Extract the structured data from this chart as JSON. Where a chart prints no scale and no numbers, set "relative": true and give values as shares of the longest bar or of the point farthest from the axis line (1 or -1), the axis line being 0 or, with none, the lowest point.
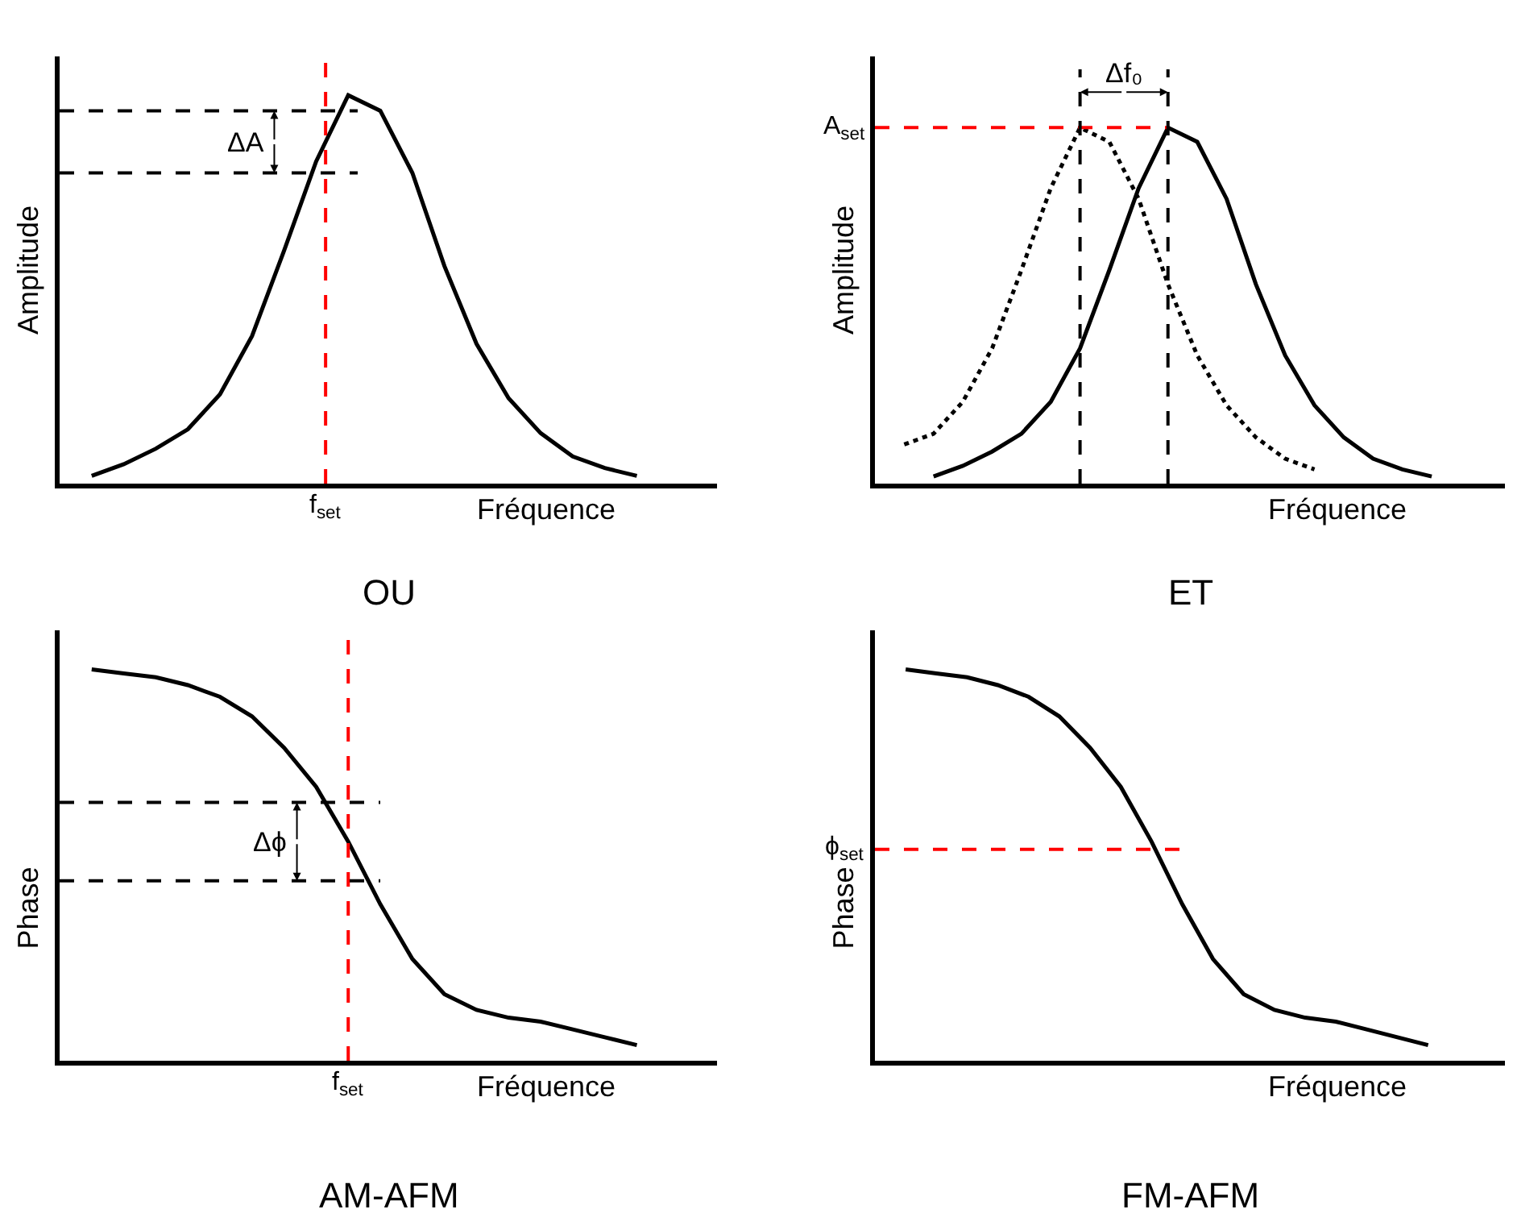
{
  "chart_data": [
    {
      "type": "line",
      "relative": true,
      "xlabel": "Fréquence",
      "ylabel": "Amplitude",
      "categories": [
        null,
        null,
        null,
        null,
        null,
        null,
        null,
        null,
        null,
        null,
        null,
        null,
        null,
        null,
        null,
        null,
        null,
        null
      ],
      "series": [
        {
          "color": "#000000",
          "line_style": "solid",
          "values": [
            0.02,
            0.05,
            0.09,
            0.14,
            0.23,
            0.38,
            0.6,
            0.83,
            1.0,
            0.96,
            0.8,
            0.56,
            0.36,
            0.22,
            0.13,
            0.07,
            0.04,
            0.02
          ]
        }
      ],
      "ref_lines": [
        {
          "axis": "y",
          "value": 0.96,
          "color": "#000000",
          "line_style": "dashed"
        },
        {
          "axis": "y",
          "value": 0.8,
          "color": "#000000",
          "line_style": "dashed"
        }
      ],
      "annotations": [
        "ΔA",
        "f$_{set}$",
        "OU"
      ]
    },
    {
      "type": "line",
      "relative": true,
      "xlabel": "Fréquence",
      "ylabel": "Amplitude",
      "categories": [
        null,
        null,
        null,
        null,
        null,
        null,
        null,
        null,
        null,
        null,
        null,
        null,
        null,
        null,
        null,
        null,
        null,
        null,
        null
      ],
      "series": [
        {
          "color": "#000000",
          "line_style": "solid",
          "values": [
            null,
            0.02,
            0.05,
            0.09,
            0.14,
            0.23,
            0.38,
            0.6,
            0.83,
            1.0,
            0.96,
            0.8,
            0.56,
            0.36,
            0.22,
            0.13,
            0.07,
            0.04,
            0.02
          ]
        },
        {
          "color": "#000000",
          "line_style": "dotted",
          "values": [
            0.11,
            0.14,
            0.23,
            0.38,
            0.6,
            0.83,
            1.0,
            0.96,
            0.8,
            0.56,
            0.36,
            0.22,
            0.13,
            0.07,
            0.04,
            null,
            null,
            null,
            null
          ]
        }
      ],
      "ref_lines": [
        {
          "axis": "y",
          "value": 1.0,
          "label": "A$_{set}$",
          "color": "#ff0000",
          "line_style": "dashed"
        }
      ],
      "annotations": [
        "Δf₀",
        "ET"
      ]
    },
    {
      "type": "line",
      "relative": true,
      "xlabel": "Fréquence",
      "ylabel": "Phase",
      "categories": [
        null,
        null,
        null,
        null,
        null,
        null,
        null,
        null,
        null,
        null,
        null,
        null,
        null,
        null,
        null,
        null,
        null,
        null
      ],
      "series": [
        {
          "color": "#000000",
          "line_style": "solid",
          "values": [
            1.0,
            0.99,
            0.98,
            0.96,
            0.93,
            0.88,
            0.8,
            0.7,
            0.56,
            0.4,
            0.26,
            0.17,
            0.13,
            0.11,
            0.1,
            0.08,
            0.06,
            0.04
          ]
        }
      ],
      "ref_lines": [
        {
          "axis": "y",
          "value": 0.66,
          "color": "#000000",
          "line_style": "dashed"
        },
        {
          "axis": "y",
          "value": 0.46,
          "color": "#000000",
          "line_style": "dashed"
        }
      ],
      "annotations": [
        "Δϕ",
        "f$_{set}$",
        "AM-AFM"
      ]
    },
    {
      "type": "line",
      "relative": true,
      "xlabel": "Fréquence",
      "ylabel": "Phase",
      "categories": [
        null,
        null,
        null,
        null,
        null,
        null,
        null,
        null,
        null,
        null,
        null,
        null,
        null,
        null,
        null,
        null,
        null,
        null
      ],
      "series": [
        {
          "color": "#000000",
          "line_style": "solid",
          "values": [
            1.0,
            0.99,
            0.98,
            0.96,
            0.93,
            0.88,
            0.8,
            0.7,
            0.56,
            0.4,
            0.26,
            0.17,
            0.13,
            0.11,
            0.1,
            0.08,
            0.06,
            0.04
          ]
        }
      ],
      "ref_lines": [
        {
          "axis": "y",
          "value": 0.54,
          "label": "ϕ$_{set}$",
          "color": "#ff0000",
          "line_style": "dashed"
        }
      ],
      "annotations": [
        "FM-AFM"
      ]
    }
  ]
}
